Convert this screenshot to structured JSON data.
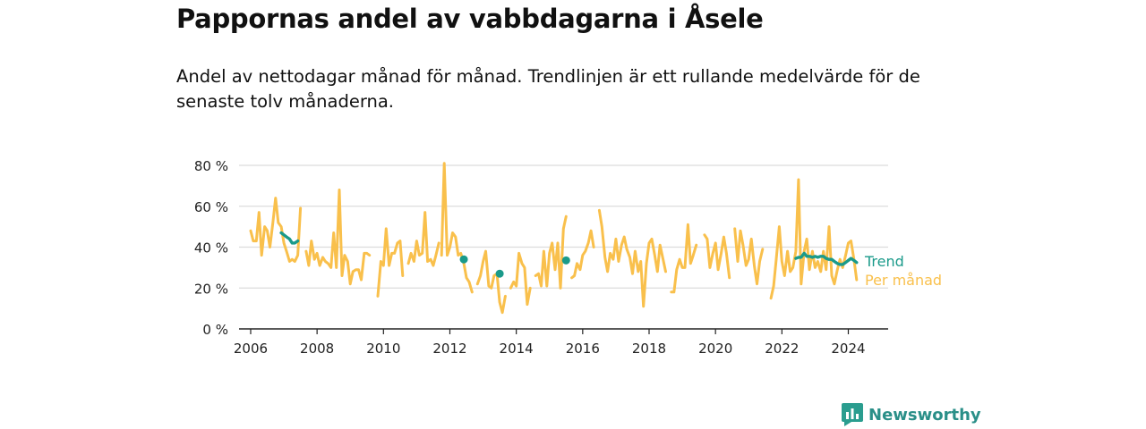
{
  "title": "Pappornas andel av vabbdagarna i Åsele",
  "subtitle": "Andel av nettodagar månad för månad. Trendlinjen är ett rullande medelvärde för de senaste tolv månaderna.",
  "brand": {
    "name": "Newsworthy",
    "icon": "newsworthy-logo-icon",
    "color": "#2a9d8f"
  },
  "chart_data": {
    "type": "line",
    "title": "",
    "xlabel": "",
    "ylabel": "",
    "xlim": [
      2005.65,
      2025.2
    ],
    "ylim": [
      0,
      80
    ],
    "x_ticks": [
      "2006",
      "2008",
      "2010",
      "2012",
      "2014",
      "2016",
      "2018",
      "2020",
      "2022",
      "2024"
    ],
    "y_ticks": [
      "0 %",
      "20 %",
      "40 %",
      "60 %",
      "80 %"
    ],
    "grid": true,
    "legend": "direct-labels-right",
    "series": [
      {
        "name": "Per månad",
        "color": "#f9c04c",
        "segments": [
          [
            [
              2006.0,
              48
            ],
            [
              2006.08,
              43
            ],
            [
              2006.17,
              43
            ],
            [
              2006.25,
              57
            ],
            [
              2006.33,
              36
            ],
            [
              2006.42,
              50
            ],
            [
              2006.5,
              48
            ],
            [
              2006.58,
              40
            ],
            [
              2006.67,
              52
            ],
            [
              2006.75,
              64
            ],
            [
              2006.83,
              52
            ],
            [
              2006.92,
              50
            ],
            [
              2007.0,
              42
            ],
            [
              2007.08,
              38
            ],
            [
              2007.17,
              33
            ],
            [
              2007.25,
              34
            ],
            [
              2007.33,
              33
            ],
            [
              2007.42,
              36
            ],
            [
              2007.5,
              59
            ]
          ],
          [
            [
              2007.67,
              38
            ],
            [
              2007.75,
              31
            ],
            [
              2007.83,
              43
            ],
            [
              2007.92,
              34
            ],
            [
              2008.0,
              37
            ],
            [
              2008.08,
              31
            ],
            [
              2008.17,
              35
            ],
            [
              2008.25,
              33
            ],
            [
              2008.33,
              32
            ],
            [
              2008.42,
              30
            ],
            [
              2008.5,
              47
            ],
            [
              2008.58,
              30
            ],
            [
              2008.67,
              68
            ],
            [
              2008.75,
              26
            ],
            [
              2008.83,
              36
            ],
            [
              2008.92,
              33
            ],
            [
              2009.0,
              22
            ],
            [
              2009.08,
              28
            ],
            [
              2009.17,
              29
            ],
            [
              2009.25,
              29
            ],
            [
              2009.33,
              24
            ],
            [
              2009.42,
              37
            ],
            [
              2009.5,
              37
            ],
            [
              2009.58,
              36
            ]
          ],
          [
            [
              2009.83,
              16
            ],
            [
              2009.92,
              33
            ],
            [
              2010.0,
              31
            ],
            [
              2010.08,
              49
            ],
            [
              2010.17,
              31
            ],
            [
              2010.25,
              37
            ],
            [
              2010.33,
              37
            ],
            [
              2010.42,
              42
            ],
            [
              2010.5,
              43
            ],
            [
              2010.58,
              26
            ]
          ],
          [
            [
              2010.75,
              32
            ],
            [
              2010.83,
              37
            ],
            [
              2010.92,
              33
            ],
            [
              2011.0,
              43
            ],
            [
              2011.08,
              36
            ],
            [
              2011.17,
              37
            ],
            [
              2011.25,
              57
            ],
            [
              2011.33,
              33
            ],
            [
              2011.42,
              34
            ],
            [
              2011.5,
              31
            ],
            [
              2011.58,
              36
            ],
            [
              2011.67,
              42
            ]
          ],
          [
            [
              2011.75,
              36
            ],
            [
              2011.83,
              81
            ],
            [
              2011.92,
              36
            ],
            [
              2012.0,
              40
            ],
            [
              2012.08,
              47
            ],
            [
              2012.17,
              45
            ],
            [
              2012.25,
              36
            ],
            [
              2012.33,
              37
            ],
            [
              2012.42,
              32
            ],
            [
              2012.5,
              25
            ],
            [
              2012.58,
              23
            ],
            [
              2012.67,
              18
            ]
          ],
          [
            [
              2012.83,
              22
            ],
            [
              2012.92,
              26
            ],
            [
              2013.0,
              33
            ],
            [
              2013.08,
              38
            ],
            [
              2013.17,
              21
            ],
            [
              2013.25,
              20
            ],
            [
              2013.33,
              26
            ],
            [
              2013.42,
              27
            ],
            [
              2013.5,
              13
            ],
            [
              2013.58,
              8
            ],
            [
              2013.67,
              16
            ]
          ],
          [
            [
              2013.83,
              20
            ],
            [
              2013.92,
              23
            ],
            [
              2014.0,
              21
            ],
            [
              2014.08,
              37
            ],
            [
              2014.17,
              32
            ],
            [
              2014.25,
              30
            ],
            [
              2014.33,
              12
            ],
            [
              2014.42,
              20
            ]
          ],
          [
            [
              2014.58,
              26
            ],
            [
              2014.67,
              27
            ],
            [
              2014.75,
              21
            ],
            [
              2014.83,
              38
            ],
            [
              2014.92,
              21
            ],
            [
              2015.0,
              37
            ],
            [
              2015.08,
              42
            ],
            [
              2015.17,
              29
            ],
            [
              2015.25,
              42
            ],
            [
              2015.33,
              20
            ],
            [
              2015.42,
              49
            ],
            [
              2015.5,
              55
            ]
          ],
          [
            [
              2015.67,
              25
            ],
            [
              2015.75,
              26
            ],
            [
              2015.83,
              32
            ],
            [
              2015.92,
              29
            ],
            [
              2016.0,
              36
            ],
            [
              2016.08,
              38
            ],
            [
              2016.17,
              42
            ],
            [
              2016.25,
              48
            ],
            [
              2016.33,
              40
            ]
          ],
          [
            [
              2016.5,
              58
            ],
            [
              2016.58,
              50
            ],
            [
              2016.67,
              35
            ],
            [
              2016.75,
              28
            ],
            [
              2016.83,
              37
            ],
            [
              2016.92,
              34
            ],
            [
              2017.0,
              44
            ],
            [
              2017.08,
              33
            ],
            [
              2017.17,
              41
            ],
            [
              2017.25,
              45
            ],
            [
              2017.33,
              39
            ],
            [
              2017.42,
              35
            ],
            [
              2017.5,
              27
            ],
            [
              2017.58,
              38
            ],
            [
              2017.67,
              28
            ],
            [
              2017.75,
              33
            ],
            [
              2017.83,
              11
            ],
            [
              2017.92,
              32
            ],
            [
              2018.0,
              42
            ],
            [
              2018.08,
              44
            ],
            [
              2018.17,
              36
            ],
            [
              2018.25,
              28
            ],
            [
              2018.33,
              41
            ],
            [
              2018.42,
              34
            ],
            [
              2018.5,
              28
            ]
          ],
          [
            [
              2018.67,
              18
            ],
            [
              2018.75,
              18
            ],
            [
              2018.83,
              29
            ],
            [
              2018.92,
              34
            ],
            [
              2019.0,
              30
            ],
            [
              2019.08,
              30
            ],
            [
              2019.17,
              51
            ],
            [
              2019.25,
              32
            ],
            [
              2019.33,
              36
            ],
            [
              2019.42,
              41
            ]
          ],
          [
            [
              2019.67,
              46
            ],
            [
              2019.75,
              44
            ],
            [
              2019.83,
              30
            ],
            [
              2019.92,
              37
            ],
            [
              2020.0,
              42
            ],
            [
              2020.08,
              29
            ],
            [
              2020.17,
              37
            ],
            [
              2020.25,
              45
            ],
            [
              2020.33,
              37
            ],
            [
              2020.42,
              25
            ]
          ],
          [
            [
              2020.58,
              49
            ],
            [
              2020.67,
              33
            ],
            [
              2020.75,
              48
            ],
            [
              2020.83,
              41
            ],
            [
              2020.92,
              31
            ],
            [
              2021.0,
              34
            ],
            [
              2021.08,
              44
            ],
            [
              2021.17,
              31
            ],
            [
              2021.25,
              22
            ],
            [
              2021.33,
              33
            ],
            [
              2021.42,
              39
            ]
          ],
          [
            [
              2021.67,
              15
            ],
            [
              2021.75,
              21
            ],
            [
              2021.83,
              34
            ],
            [
              2021.92,
              50
            ],
            [
              2022.0,
              33
            ],
            [
              2022.08,
              26
            ],
            [
              2022.17,
              38
            ],
            [
              2022.25,
              28
            ],
            [
              2022.33,
              30
            ],
            [
              2022.42,
              38
            ],
            [
              2022.5,
              73
            ],
            [
              2022.58,
              22
            ],
            [
              2022.67,
              38
            ],
            [
              2022.75,
              44
            ],
            [
              2022.83,
              29
            ],
            [
              2022.92,
              38
            ],
            [
              2023.0,
              30
            ],
            [
              2023.08,
              33
            ],
            [
              2023.17,
              28
            ],
            [
              2023.25,
              38
            ],
            [
              2023.33,
              29
            ],
            [
              2023.42,
              50
            ],
            [
              2023.5,
              26
            ],
            [
              2023.58,
              22
            ],
            [
              2023.67,
              29
            ],
            [
              2023.75,
              34
            ],
            [
              2023.83,
              30
            ],
            [
              2023.92,
              36
            ],
            [
              2024.0,
              42
            ],
            [
              2024.08,
              43
            ],
            [
              2024.17,
              34
            ],
            [
              2024.25,
              24
            ]
          ]
        ]
      },
      {
        "name": "Trend",
        "color": "#1a9a8a",
        "segments": [
          [
            [
              2006.92,
              47
            ],
            [
              2007.0,
              46
            ],
            [
              2007.08,
              45
            ],
            [
              2007.17,
              44
            ],
            [
              2007.25,
              42
            ],
            [
              2007.33,
              42
            ],
            [
              2007.42,
              43
            ]
          ],
          [
            [
              2012.42,
              34
            ]
          ],
          [
            [
              2013.5,
              27
            ]
          ],
          [
            [
              2015.5,
              33.5
            ]
          ],
          [
            [
              2022.42,
              34.5
            ],
            [
              2022.5,
              35
            ],
            [
              2022.58,
              35
            ],
            [
              2022.67,
              37
            ],
            [
              2022.75,
              35.5
            ],
            [
              2022.83,
              35.5
            ],
            [
              2022.92,
              35
            ],
            [
              2023.0,
              35.5
            ],
            [
              2023.08,
              35
            ],
            [
              2023.17,
              35.5
            ],
            [
              2023.25,
              35.5
            ],
            [
              2023.33,
              34.5
            ],
            [
              2023.42,
              34
            ],
            [
              2023.5,
              34
            ],
            [
              2023.58,
              33
            ],
            [
              2023.67,
              32
            ],
            [
              2023.75,
              31.5
            ],
            [
              2023.83,
              31.5
            ],
            [
              2023.92,
              32.5
            ],
            [
              2024.0,
              33.5
            ],
            [
              2024.08,
              34.5
            ],
            [
              2024.17,
              33.5
            ],
            [
              2024.25,
              32.5
            ]
          ]
        ]
      }
    ]
  }
}
